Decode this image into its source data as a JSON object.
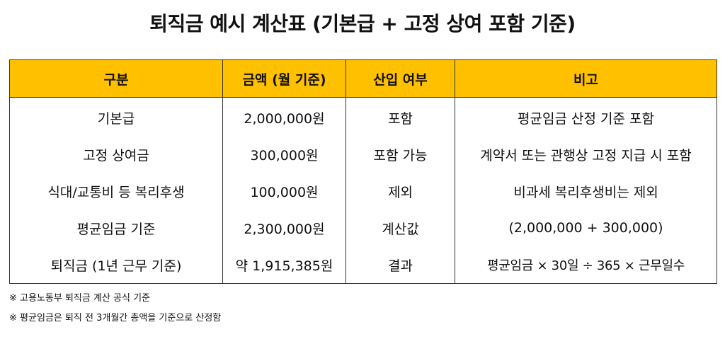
{
  "title": "퇴직금 예시 계산표 (기본급 + 고정 상여 포함 기준)",
  "table": {
    "headers": [
      "구분",
      "금액 (월 기준)",
      "산입 여부",
      "비고"
    ],
    "header_color": "#ffc000",
    "rows": [
      [
        "기본급",
        "2,000,000원",
        "포함",
        "평균임금 산정 기준 포함"
      ],
      [
        "고정 상여금",
        "300,000원",
        "포함 가능",
        "계약서 또는 관행상 고정 지급 시 포함"
      ],
      [
        "식대/교통비 등 복리후생",
        "100,000원",
        "제외",
        "비과세 복리후생비는 제외"
      ],
      [
        "평균임금 기준",
        "2,300,000원",
        "계산값",
        "(2,000,000 + 300,000)"
      ],
      [
        "퇴직금 (1년 근무 기준)",
        "약 1,915,385원",
        "결과",
        "평균임금 × 30일 ÷ 365 × 근무일수"
      ]
    ]
  },
  "notes": [
    "※ 고용노동부 퇴직금 계산 공식 기준",
    "※ 평균임금은 퇴직 전 3개월간 총액을 기준으로 산정함"
  ]
}
